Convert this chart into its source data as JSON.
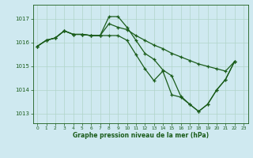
{
  "title": "Graphe pression niveau de la mer (hPa)",
  "bg_color": "#cfe9f0",
  "grid_color": "#b0d4c8",
  "line_color": "#1a5c1a",
  "xlim": [
    -0.5,
    23.5
  ],
  "ylim": [
    1012.6,
    1017.6
  ],
  "yticks": [
    1013,
    1014,
    1015,
    1016,
    1017
  ],
  "xticks": [
    0,
    1,
    2,
    3,
    4,
    5,
    6,
    7,
    8,
    9,
    10,
    11,
    12,
    13,
    14,
    15,
    16,
    17,
    18,
    19,
    20,
    21,
    22,
    23
  ],
  "curve_spike": [
    0,
    1,
    2,
    3,
    4,
    5,
    6,
    7,
    8,
    9,
    10,
    11,
    12,
    13,
    14,
    15,
    16,
    17,
    18,
    19,
    20,
    21,
    22
  ],
  "vals_spike": [
    1015.85,
    1016.1,
    1016.2,
    1016.5,
    1016.35,
    1016.35,
    1016.3,
    1016.3,
    1017.1,
    1017.1,
    1016.65,
    1016.1,
    1015.55,
    1015.3,
    1014.85,
    1014.6,
    1013.75,
    1013.4,
    1013.1,
    1013.4,
    1014.0,
    1014.45,
    1015.2
  ],
  "curve_upper": [
    0,
    1,
    2,
    3,
    4,
    5,
    6,
    7,
    8,
    9,
    10,
    11,
    12,
    13,
    14,
    15,
    16,
    17,
    18,
    19,
    20,
    21,
    22
  ],
  "vals_upper": [
    1015.85,
    1016.1,
    1016.2,
    1016.5,
    1016.35,
    1016.35,
    1016.3,
    1016.3,
    1016.8,
    1016.65,
    1016.55,
    1016.3,
    1016.1,
    1015.9,
    1015.75,
    1015.55,
    1015.4,
    1015.25,
    1015.1,
    1015.0,
    1014.9,
    1014.8,
    1015.2
  ],
  "curve_lower": [
    0,
    1,
    2,
    3,
    4,
    5,
    6,
    7,
    8,
    9,
    10,
    11,
    12,
    13,
    14,
    15,
    16,
    17,
    18,
    19,
    20,
    21,
    22
  ],
  "vals_lower": [
    1015.85,
    1016.1,
    1016.2,
    1016.5,
    1016.35,
    1016.35,
    1016.3,
    1016.3,
    1016.3,
    1016.3,
    1016.1,
    1015.5,
    1014.9,
    1014.4,
    1014.8,
    1013.8,
    1013.7,
    1013.4,
    1013.1,
    1013.4,
    1014.0,
    1014.45,
    1015.2
  ]
}
